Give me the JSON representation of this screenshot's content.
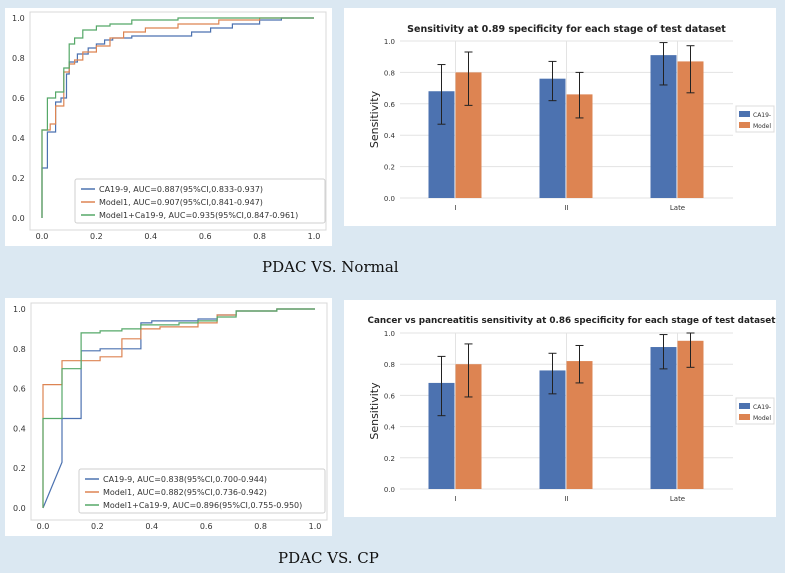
{
  "colors": {
    "ca199": "#4c72b0",
    "model1": "#dd8452",
    "combined": "#55a868",
    "grid": "#e3e3e3",
    "error_bar": "#222222",
    "background": "#dbe8f2"
  },
  "captions": {
    "normal": "PDAC VS. Normal",
    "cp": "PDAC VS. CP"
  },
  "chart_data": [
    {
      "id": "roc_normal",
      "type": "line",
      "title": "",
      "xlabel": "",
      "ylabel": "",
      "xlim": [
        0,
        1
      ],
      "ylim": [
        0,
        1
      ],
      "grid": false,
      "legend_position": "lower-right",
      "xticks": [
        "0.0",
        "0.2",
        "0.4",
        "0.6",
        "0.8",
        "1.0"
      ],
      "yticks": [
        "0.0",
        "0.2",
        "0.4",
        "0.6",
        "0.8",
        "1.0"
      ],
      "series": [
        {
          "name": "CA19-9, AUC=0.887(95%CI,0.833-0.937)",
          "color_key": "ca199",
          "points": [
            [
              0,
              0
            ],
            [
              0,
              0.25
            ],
            [
              0.02,
              0.25
            ],
            [
              0.02,
              0.43
            ],
            [
              0.05,
              0.43
            ],
            [
              0.05,
              0.58
            ],
            [
              0.07,
              0.58
            ],
            [
              0.07,
              0.6
            ],
            [
              0.09,
              0.6
            ],
            [
              0.09,
              0.72
            ],
            [
              0.1,
              0.72
            ],
            [
              0.1,
              0.78
            ],
            [
              0.13,
              0.78
            ],
            [
              0.13,
              0.82
            ],
            [
              0.17,
              0.82
            ],
            [
              0.17,
              0.85
            ],
            [
              0.2,
              0.85
            ],
            [
              0.2,
              0.87
            ],
            [
              0.23,
              0.87
            ],
            [
              0.23,
              0.89
            ],
            [
              0.26,
              0.89
            ],
            [
              0.26,
              0.9
            ],
            [
              0.33,
              0.9
            ],
            [
              0.33,
              0.91
            ],
            [
              0.55,
              0.91
            ],
            [
              0.55,
              0.93
            ],
            [
              0.62,
              0.93
            ],
            [
              0.62,
              0.95
            ],
            [
              0.7,
              0.95
            ],
            [
              0.7,
              0.97
            ],
            [
              0.8,
              0.97
            ],
            [
              0.8,
              0.99
            ],
            [
              0.88,
              0.99
            ],
            [
              0.88,
              1.0
            ],
            [
              1.0,
              1.0
            ]
          ]
        },
        {
          "name": "Model1, AUC=0.907(95%CI,0.841-0.947)",
          "color_key": "model1",
          "points": [
            [
              0,
              0
            ],
            [
              0,
              0.44
            ],
            [
              0.03,
              0.44
            ],
            [
              0.03,
              0.47
            ],
            [
              0.05,
              0.47
            ],
            [
              0.05,
              0.56
            ],
            [
              0.08,
              0.56
            ],
            [
              0.08,
              0.73
            ],
            [
              0.1,
              0.73
            ],
            [
              0.1,
              0.77
            ],
            [
              0.12,
              0.77
            ],
            [
              0.12,
              0.79
            ],
            [
              0.15,
              0.79
            ],
            [
              0.15,
              0.83
            ],
            [
              0.2,
              0.83
            ],
            [
              0.2,
              0.86
            ],
            [
              0.25,
              0.86
            ],
            [
              0.25,
              0.9
            ],
            [
              0.3,
              0.9
            ],
            [
              0.3,
              0.93
            ],
            [
              0.38,
              0.93
            ],
            [
              0.38,
              0.95
            ],
            [
              0.5,
              0.95
            ],
            [
              0.5,
              0.97
            ],
            [
              0.65,
              0.97
            ],
            [
              0.65,
              0.99
            ],
            [
              0.8,
              0.99
            ],
            [
              0.8,
              1.0
            ],
            [
              1.0,
              1.0
            ]
          ]
        },
        {
          "name": "Model1+Ca19-9, AUC=0.935(95%CI,0.847-0.961)",
          "color_key": "combined",
          "points": [
            [
              0,
              0
            ],
            [
              0,
              0.44
            ],
            [
              0.02,
              0.44
            ],
            [
              0.02,
              0.6
            ],
            [
              0.05,
              0.6
            ],
            [
              0.05,
              0.63
            ],
            [
              0.08,
              0.63
            ],
            [
              0.08,
              0.75
            ],
            [
              0.1,
              0.75
            ],
            [
              0.1,
              0.87
            ],
            [
              0.12,
              0.87
            ],
            [
              0.12,
              0.9
            ],
            [
              0.15,
              0.9
            ],
            [
              0.15,
              0.94
            ],
            [
              0.2,
              0.94
            ],
            [
              0.2,
              0.96
            ],
            [
              0.25,
              0.96
            ],
            [
              0.25,
              0.97
            ],
            [
              0.33,
              0.97
            ],
            [
              0.33,
              0.99
            ],
            [
              0.5,
              0.99
            ],
            [
              0.5,
              1.0
            ],
            [
              1.0,
              1.0
            ]
          ]
        }
      ]
    },
    {
      "id": "bar_normal",
      "type": "bar",
      "title": "Sensitivity at 0.89 specificity for each stage of test dataset",
      "xlabel": "",
      "ylabel": "Sensitivity",
      "ylim": [
        0,
        1
      ],
      "yticks": [
        "0.0",
        "0.2",
        "0.4",
        "0.6",
        "0.8",
        "1.0"
      ],
      "grid": true,
      "legend_position": "right",
      "categories": [
        "I",
        "II",
        "Late"
      ],
      "series": [
        {
          "name": "CA19-",
          "color_key": "ca199",
          "values": [
            0.68,
            0.76,
            0.91
          ],
          "err_low": [
            0.47,
            0.62,
            0.72
          ],
          "err_high": [
            0.85,
            0.87,
            0.99
          ]
        },
        {
          "name": "Model",
          "color_key": "model1",
          "values": [
            0.8,
            0.66,
            0.87
          ],
          "err_low": [
            0.59,
            0.51,
            0.67
          ],
          "err_high": [
            0.93,
            0.8,
            0.97
          ]
        }
      ]
    },
    {
      "id": "roc_cp",
      "type": "line",
      "title": "",
      "xlabel": "",
      "ylabel": "",
      "xlim": [
        0,
        1
      ],
      "ylim": [
        0,
        1
      ],
      "grid": false,
      "legend_position": "lower-right",
      "xticks": [
        "0.0",
        "0.2",
        "0.4",
        "0.6",
        "0.8",
        "1.0"
      ],
      "yticks": [
        "0.0",
        "0.2",
        "0.4",
        "0.6",
        "0.8",
        "1.0"
      ],
      "series": [
        {
          "name": "CA19-9, AUC=0.838(95%CI,0.700-0.944)",
          "color_key": "ca199",
          "points": [
            [
              0,
              0
            ],
            [
              0.07,
              0.23
            ],
            [
              0.07,
              0.45
            ],
            [
              0.14,
              0.45
            ],
            [
              0.14,
              0.79
            ],
            [
              0.21,
              0.79
            ],
            [
              0.21,
              0.8
            ],
            [
              0.36,
              0.8
            ],
            [
              0.36,
              0.93
            ],
            [
              0.4,
              0.93
            ],
            [
              0.4,
              0.94
            ],
            [
              0.57,
              0.94
            ],
            [
              0.57,
              0.95
            ],
            [
              0.64,
              0.95
            ],
            [
              0.64,
              0.97
            ],
            [
              0.71,
              0.97
            ],
            [
              0.71,
              0.99
            ],
            [
              0.86,
              0.99
            ],
            [
              0.86,
              1.0
            ],
            [
              1.0,
              1.0
            ]
          ]
        },
        {
          "name": "Model1, AUC=0.882(95%CI,0.736-0.942)",
          "color_key": "model1",
          "points": [
            [
              0,
              0
            ],
            [
              0,
              0.62
            ],
            [
              0.07,
              0.62
            ],
            [
              0.07,
              0.74
            ],
            [
              0.21,
              0.74
            ],
            [
              0.21,
              0.76
            ],
            [
              0.29,
              0.76
            ],
            [
              0.29,
              0.85
            ],
            [
              0.36,
              0.85
            ],
            [
              0.36,
              0.9
            ],
            [
              0.43,
              0.9
            ],
            [
              0.43,
              0.91
            ],
            [
              0.57,
              0.91
            ],
            [
              0.57,
              0.93
            ],
            [
              0.64,
              0.93
            ],
            [
              0.64,
              0.97
            ],
            [
              0.71,
              0.97
            ],
            [
              0.71,
              0.99
            ],
            [
              0.86,
              0.99
            ],
            [
              0.86,
              1.0
            ],
            [
              1.0,
              1.0
            ]
          ]
        },
        {
          "name": "Model1+Ca19-9, AUC=0.896(95%CI,0.755-0.950)",
          "color_key": "combined",
          "points": [
            [
              0,
              0
            ],
            [
              0,
              0.45
            ],
            [
              0.07,
              0.45
            ],
            [
              0.07,
              0.7
            ],
            [
              0.14,
              0.7
            ],
            [
              0.14,
              0.88
            ],
            [
              0.21,
              0.88
            ],
            [
              0.21,
              0.89
            ],
            [
              0.29,
              0.89
            ],
            [
              0.29,
              0.9
            ],
            [
              0.36,
              0.9
            ],
            [
              0.36,
              0.92
            ],
            [
              0.5,
              0.92
            ],
            [
              0.5,
              0.93
            ],
            [
              0.57,
              0.93
            ],
            [
              0.57,
              0.94
            ],
            [
              0.64,
              0.94
            ],
            [
              0.64,
              0.96
            ],
            [
              0.71,
              0.96
            ],
            [
              0.71,
              0.99
            ],
            [
              0.86,
              0.99
            ],
            [
              0.86,
              1.0
            ],
            [
              1.0,
              1.0
            ]
          ]
        }
      ]
    },
    {
      "id": "bar_cp",
      "type": "bar",
      "title": "Cancer vs pancreatitis sensitivity at 0.86 specificity for each stage of test dataset",
      "xlabel": "",
      "ylabel": "Sensitivity",
      "ylim": [
        0,
        1
      ],
      "yticks": [
        "0.0",
        "0.2",
        "0.4",
        "0.6",
        "0.8",
        "1.0"
      ],
      "grid": true,
      "legend_position": "right",
      "categories": [
        "I",
        "II",
        "Late"
      ],
      "series": [
        {
          "name": "CA19-",
          "color_key": "ca199",
          "values": [
            0.68,
            0.76,
            0.91
          ],
          "err_low": [
            0.47,
            0.61,
            0.77
          ],
          "err_high": [
            0.85,
            0.87,
            0.99
          ]
        },
        {
          "name": "Model",
          "color_key": "model1",
          "values": [
            0.8,
            0.82,
            0.95
          ],
          "err_low": [
            0.59,
            0.68,
            0.78
          ],
          "err_high": [
            0.93,
            0.92,
            1.0
          ]
        }
      ]
    }
  ]
}
